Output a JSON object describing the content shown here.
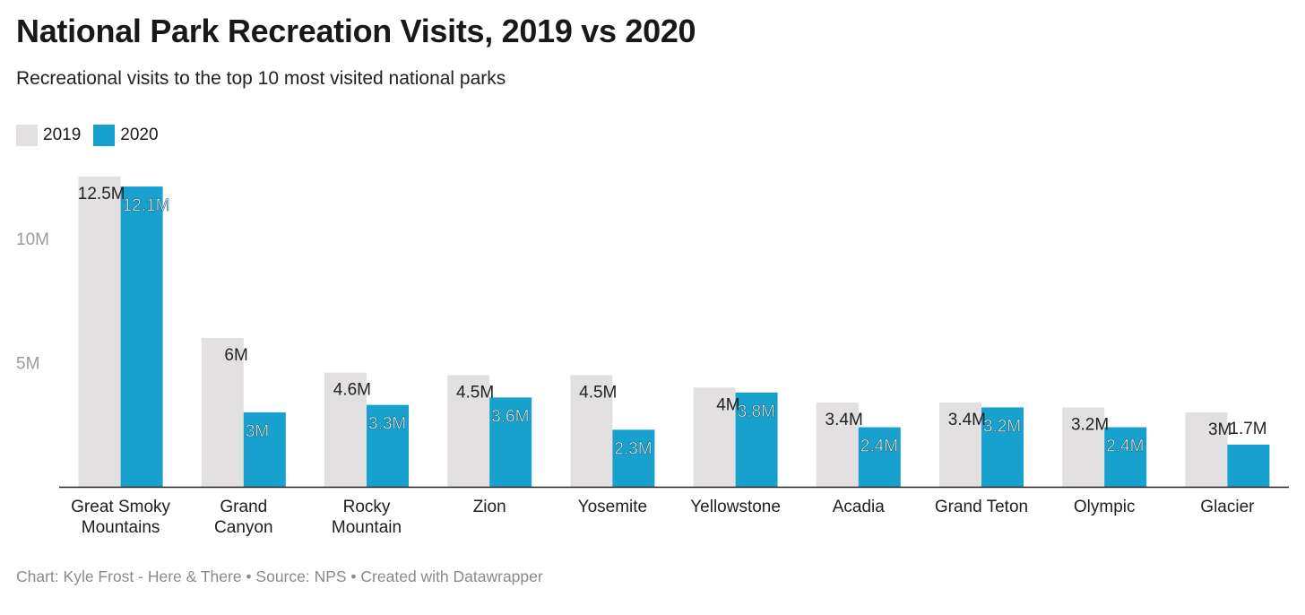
{
  "title": "National Park Recreation Visits, 2019 vs 2020",
  "subtitle": "Recreational visits to the top 10 most visited national parks",
  "footer": "Chart: Kyle Frost - Here & There • Source: NPS • Created with Datawrapper",
  "colors": {
    "series_2019": "#e2e0e1",
    "series_2020": "#18a1cd"
  },
  "chart_data": {
    "type": "bar",
    "categories": [
      [
        "Great Smoky",
        "Mountains"
      ],
      [
        "Grand",
        "Canyon"
      ],
      [
        "Rocky",
        "Mountain"
      ],
      [
        "Zion"
      ],
      [
        "Yosemite"
      ],
      [
        "Yellowstone"
      ],
      [
        "Acadia"
      ],
      [
        "Grand Teton"
      ],
      [
        "Olympic"
      ],
      [
        "Glacier"
      ]
    ],
    "series": [
      {
        "name": "2019",
        "values": [
          12.5,
          6.0,
          4.6,
          4.5,
          4.5,
          4.0,
          3.4,
          3.4,
          3.2,
          3.0
        ],
        "labels": [
          "12.5M",
          "6M",
          "4.6M",
          "4.5M",
          "4.5M",
          "4M",
          "3.4M",
          "3.4M",
          "3.2M",
          "3M"
        ]
      },
      {
        "name": "2020",
        "values": [
          12.1,
          3.0,
          3.3,
          3.6,
          2.3,
          3.8,
          2.4,
          3.2,
          2.4,
          1.7
        ],
        "labels": [
          "12.1M",
          "3M",
          "3.3M",
          "3.6M",
          "2.3M",
          "3.8M",
          "2.4M",
          "3.2M",
          "2.4M",
          "1.7M"
        ]
      }
    ],
    "y_ticks": [
      {
        "value": 5,
        "label": "5M"
      },
      {
        "value": 10,
        "label": "10M"
      }
    ],
    "ylim": [
      0,
      12.5
    ],
    "grid": false,
    "legend": "top-left"
  }
}
